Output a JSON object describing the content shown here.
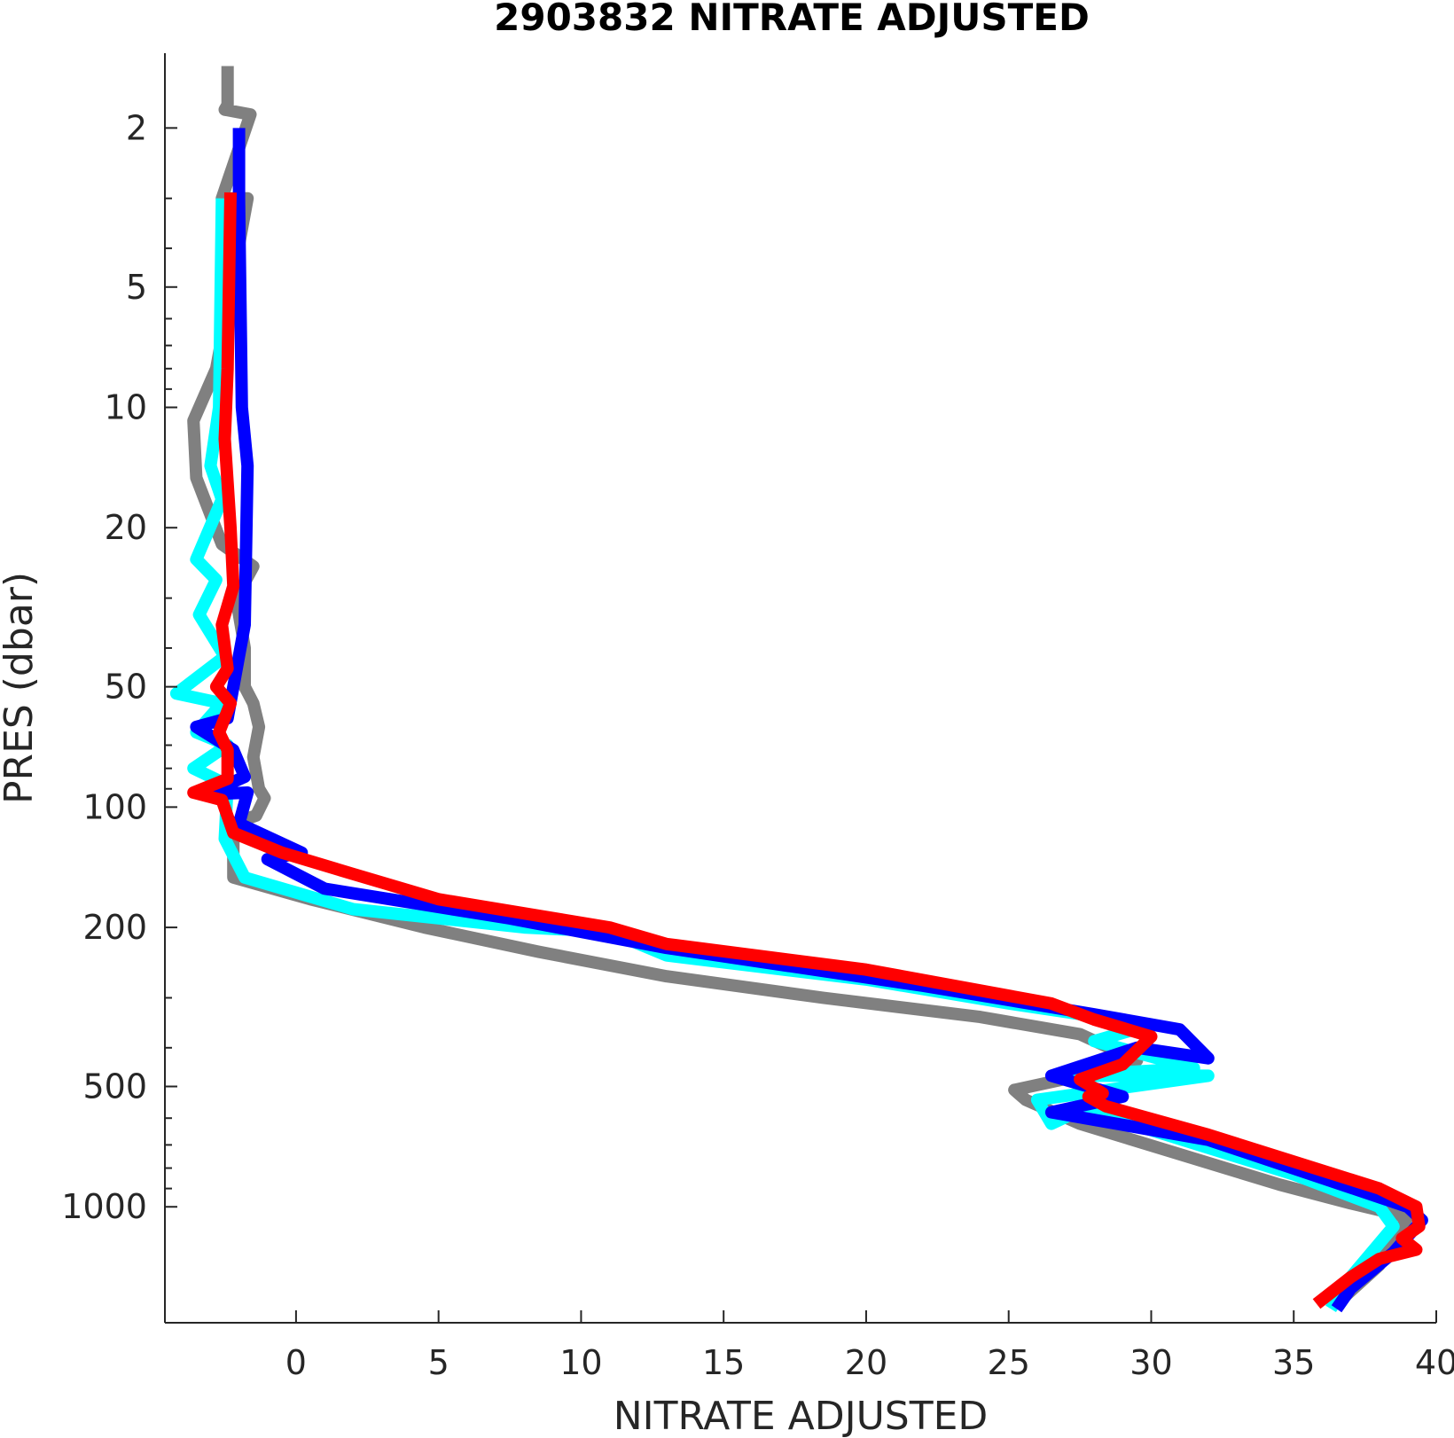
{
  "chart_data": {
    "type": "line",
    "title": "2903832  NITRATE ADJUSTED",
    "xlabel": "NITRATE ADJUSTED",
    "ylabel": "PRES (dbar)",
    "xlim": [
      -4.6,
      40
    ],
    "ylim": [
      1.3,
      1950
    ],
    "y_scale": "log",
    "y_reversed": true,
    "grid": false,
    "x_ticks": [
      0,
      5,
      10,
      15,
      20,
      25,
      30,
      35,
      40
    ],
    "x_tick_labels": [
      "0",
      "5",
      "10",
      "15",
      "20",
      "25",
      "30",
      "35",
      "40"
    ],
    "y_ticks": [
      2,
      5,
      10,
      20,
      50,
      100,
      200,
      500,
      1000
    ],
    "y_tick_labels": [
      "2",
      "5",
      "10",
      "20",
      "50",
      "100",
      "200",
      "500",
      "1000"
    ],
    "y_minor_ticks": [
      3,
      4,
      6,
      7,
      8,
      9,
      30,
      40,
      60,
      70,
      80,
      90,
      300,
      400,
      600,
      700,
      800,
      900
    ],
    "series": [
      {
        "color": "#808080",
        "width": 14,
        "points": [
          [
            -2.4,
            1.4
          ],
          [
            -2.4,
            1.75
          ],
          [
            -2.5,
            1.8
          ],
          [
            -1.6,
            1.85
          ],
          [
            -2.6,
            3
          ],
          [
            -1.7,
            3
          ],
          [
            -2.8,
            8
          ],
          [
            -3.6,
            10.8
          ],
          [
            -3.5,
            15
          ],
          [
            -2.6,
            22
          ],
          [
            -1.5,
            25
          ],
          [
            -2.1,
            30
          ],
          [
            -1.8,
            40
          ],
          [
            -1.8,
            50
          ],
          [
            -1.5,
            55
          ],
          [
            -1.3,
            63
          ],
          [
            -1.5,
            75
          ],
          [
            -1.3,
            90
          ],
          [
            -1.1,
            95
          ],
          [
            -1.4,
            105
          ],
          [
            -2.2,
            110
          ],
          [
            -2.2,
            150
          ],
          [
            0.5,
            170
          ],
          [
            4.5,
            200
          ],
          [
            8.5,
            230
          ],
          [
            13,
            265
          ],
          [
            18.5,
            300
          ],
          [
            24,
            335
          ],
          [
            27.5,
            370
          ],
          [
            29.5,
            430
          ],
          [
            27.5,
            470
          ],
          [
            25.2,
            510
          ],
          [
            25.6,
            540
          ],
          [
            27.5,
            620
          ],
          [
            34.5,
            880
          ],
          [
            37,
            980
          ],
          [
            39,
            1060
          ],
          [
            38.5,
            1200
          ],
          [
            38,
            1400
          ],
          [
            36.5,
            1750
          ]
        ]
      },
      {
        "color": "#00FFFF",
        "width": 14,
        "points": [
          [
            -2.6,
            3
          ],
          [
            -2.7,
            10
          ],
          [
            -3,
            14
          ],
          [
            -2.6,
            17
          ],
          [
            -3.5,
            24
          ],
          [
            -2.8,
            27
          ],
          [
            -3.4,
            33
          ],
          [
            -2.5,
            42
          ],
          [
            -4.2,
            52
          ],
          [
            -2.6,
            55
          ],
          [
            -3.5,
            65
          ],
          [
            -2.4,
            70
          ],
          [
            -3.6,
            80
          ],
          [
            -2.4,
            88
          ],
          [
            -2.5,
            120
          ],
          [
            -1.8,
            150
          ],
          [
            2,
            180
          ],
          [
            8,
            200
          ],
          [
            11,
            205
          ],
          [
            13,
            235
          ],
          [
            20,
            270
          ],
          [
            25,
            310
          ],
          [
            30,
            350
          ],
          [
            28,
            385
          ],
          [
            31.5,
            450
          ],
          [
            27,
            470
          ],
          [
            32,
            470
          ],
          [
            26,
            540
          ],
          [
            26.5,
            620
          ],
          [
            29,
            510
          ],
          [
            28,
            580
          ],
          [
            35,
            830
          ],
          [
            38,
            1000
          ],
          [
            38.5,
            1120
          ],
          [
            37,
            1500
          ],
          [
            36.3,
            1800
          ]
        ]
      },
      {
        "color": "#0000FF",
        "width": 14,
        "points": [
          [
            -2,
            2
          ],
          [
            -2,
            3
          ],
          [
            -1.9,
            10
          ],
          [
            -1.7,
            14
          ],
          [
            -1.8,
            35
          ],
          [
            -2.4,
            60
          ],
          [
            -3.5,
            63
          ],
          [
            -2.2,
            72
          ],
          [
            -1.8,
            84
          ],
          [
            -3.2,
            93
          ],
          [
            -1.7,
            92
          ],
          [
            -2,
            110
          ],
          [
            0.2,
            130
          ],
          [
            -1,
            135
          ],
          [
            1,
            160
          ],
          [
            7.5,
            190
          ],
          [
            13,
            225
          ],
          [
            22,
            280
          ],
          [
            28,
            330
          ],
          [
            31,
            360
          ],
          [
            32,
            425
          ],
          [
            29.5,
            400
          ],
          [
            26.5,
            470
          ],
          [
            29,
            530
          ],
          [
            26.5,
            580
          ],
          [
            32,
            680
          ],
          [
            39,
            1000
          ],
          [
            39.5,
            1080
          ],
          [
            38.5,
            1300
          ],
          [
            37,
            1600
          ],
          [
            36.5,
            1800
          ]
        ]
      },
      {
        "color": "#FF0000",
        "width": 14,
        "points": [
          [
            -2.3,
            2.9
          ],
          [
            -2.4,
            8
          ],
          [
            -2.5,
            12
          ],
          [
            -2.3,
            20
          ],
          [
            -2.2,
            28
          ],
          [
            -2.6,
            35
          ],
          [
            -2.4,
            45
          ],
          [
            -2.8,
            50
          ],
          [
            -2.3,
            55
          ],
          [
            -2.7,
            65
          ],
          [
            -2.4,
            72
          ],
          [
            -2.4,
            85
          ],
          [
            -3.6,
            92
          ],
          [
            -2.6,
            96
          ],
          [
            -2.2,
            116
          ],
          [
            -0.5,
            130
          ],
          [
            2,
            147
          ],
          [
            5,
            170
          ],
          [
            11,
            200
          ],
          [
            13,
            220
          ],
          [
            20,
            255
          ],
          [
            26.5,
            310
          ],
          [
            28,
            340
          ],
          [
            30,
            375
          ],
          [
            29,
            440
          ],
          [
            27.5,
            480
          ],
          [
            28.3,
            520
          ],
          [
            27.8,
            530
          ],
          [
            28.4,
            560
          ],
          [
            32,
            660
          ],
          [
            38,
            900
          ],
          [
            39.3,
            1000
          ],
          [
            39.4,
            1120
          ],
          [
            38.8,
            1200
          ],
          [
            39.3,
            1280
          ],
          [
            38,
            1350
          ],
          [
            37,
            1500
          ],
          [
            35.8,
            1750
          ]
        ]
      }
    ]
  }
}
